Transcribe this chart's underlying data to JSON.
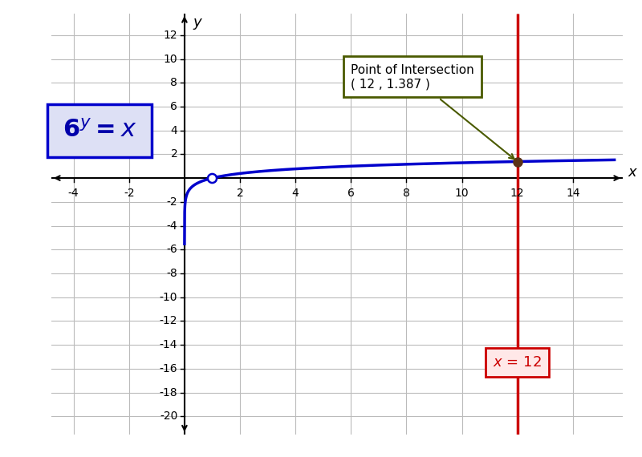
{
  "title": "",
  "xlabel": "x",
  "ylabel": "y",
  "xlim": [
    -4.8,
    15.8
  ],
  "ylim": [
    -21.5,
    13.8
  ],
  "xticks": [
    -4,
    -2,
    2,
    4,
    6,
    8,
    10,
    12,
    14
  ],
  "yticks": [
    -20,
    -18,
    -16,
    -14,
    -12,
    -10,
    -8,
    -6,
    -4,
    -2,
    2,
    4,
    6,
    8,
    10,
    12
  ],
  "log_curve_color": "#0000cc",
  "vertical_line_color": "#cc0000",
  "vertical_x": 12,
  "intersection_x": 12,
  "intersection_y": 1.387,
  "base": 6,
  "equation_box_color": "#dde0f5",
  "equation_box_edge": "#0000cc",
  "vertical_label": "x = 12",
  "vertical_box_color": "#ffe8e8",
  "vertical_box_edge": "#cc0000",
  "annotation_text": "Point of Intersection\n( 12 , 1.387 )",
  "annotation_box_color": "#ffffff",
  "annotation_box_edge": "#4a5a00",
  "background_color": "#ffffff",
  "grid_color": "#bbbbbb",
  "axis_color": "#000000"
}
